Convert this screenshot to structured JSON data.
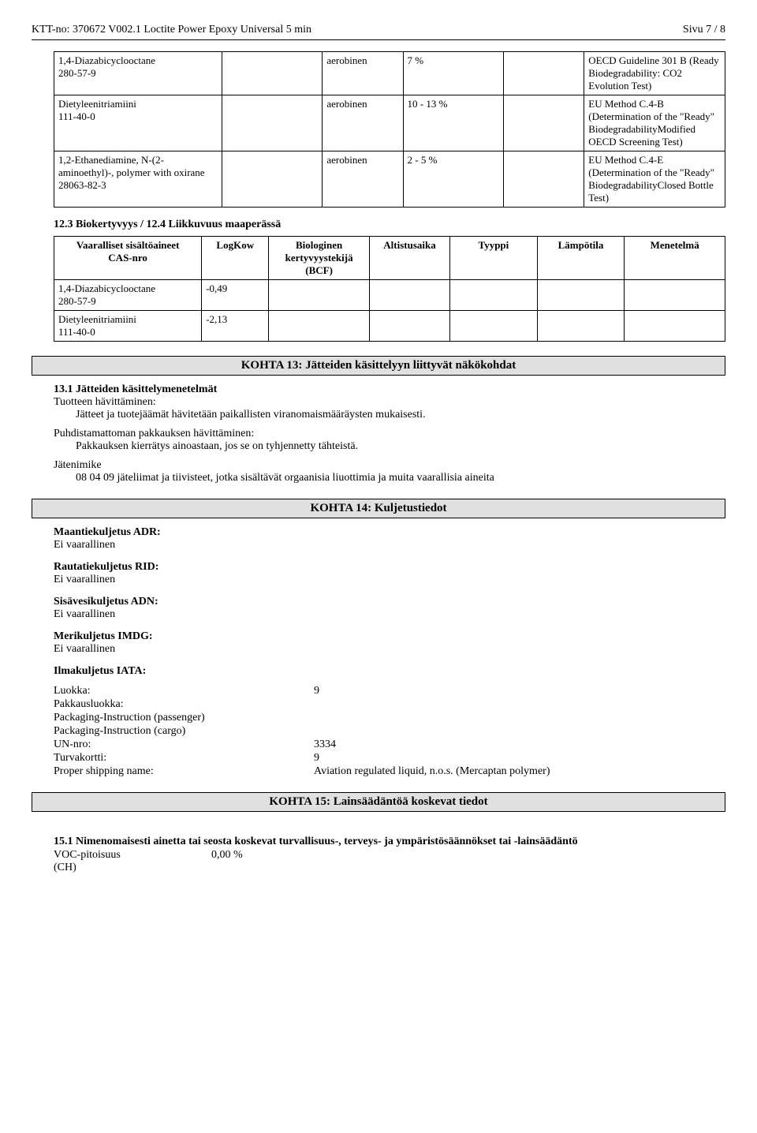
{
  "header": {
    "left": "KTT-no: 370672   V002.1    Loctite Power Epoxy Universal 5 min",
    "right": "Sivu 7 / 8"
  },
  "table1": {
    "rows": [
      {
        "substance": "1,4-Diazabicyclooctane\n280-57-9",
        "c2": "aerobinen",
        "c3": "7 %",
        "c4": "OECD Guideline 301 B (Ready Biodegradability: CO2 Evolution Test)"
      },
      {
        "substance": "Dietyleenitriamiini\n111-40-0",
        "c2": "aerobinen",
        "c3": "10 - 13 %",
        "c4": "EU Method C.4-B (Determination of the \"Ready\" BiodegradabilityModified OECD Screening Test)"
      },
      {
        "substance": "1,2-Ethanediamine, N-(2-aminoethyl)-, polymer with oxirane\n28063-82-3",
        "c2": "aerobinen",
        "c3": "2 - 5 %",
        "c4": "EU Method C.4-E (Determination of the \"Ready\" BiodegradabilityClosed Bottle Test)"
      }
    ]
  },
  "sec12_3_title": "12.3 Biokertyvyys / 12.4 Liikkuvuus maaperässä",
  "table2": {
    "headers": [
      "Vaaralliset sisältöaineet\nCAS-nro",
      "LogKow",
      "Biologinen kertyvyystekijä (BCF)",
      "Altistusaika",
      "Tyyppi",
      "Lämpötila",
      "Menetelmä"
    ],
    "rows": [
      {
        "c1": "1,4-Diazabicyclooctane\n280-57-9",
        "c2": "-0,49",
        "c3": "",
        "c4": "",
        "c5": "",
        "c6": "",
        "c7": ""
      },
      {
        "c1": "Dietyleenitriamiini\n111-40-0",
        "c2": "-2,13",
        "c3": "",
        "c4": "",
        "c5": "",
        "c6": "",
        "c7": ""
      }
    ]
  },
  "kohta13": {
    "bar": "KOHTA 13: Jätteiden käsittelyyn liittyvät näkökohdat",
    "s1_title": "13.1 Jätteiden käsittelymenetelmät",
    "disposal_label": "Tuotteen hävittäminen:",
    "disposal_text": "Jätteet ja tuotejäämät hävitetään paikallisten viranomaismääräysten mukaisesti.",
    "pkg_label": "Puhdistamattoman pakkauksen hävittäminen:",
    "pkg_text": "Pakkauksen kierrätys ainoastaan, jos se on tyhjennetty tähteistä.",
    "waste_label": "Jätenimike",
    "waste_text": "08 04 09 jäteliimat ja tiivisteet, jotka sisältävät orgaanisia liuottimia ja muita vaarallisia aineita"
  },
  "kohta14": {
    "bar": "KOHTA 14: Kuljetustiedot",
    "blocks": [
      {
        "title": "Maantiekuljetus ADR:",
        "value": "Ei vaarallinen"
      },
      {
        "title": "Rautatiekuljetus RID:",
        "value": "Ei vaarallinen"
      },
      {
        "title": "Sisävesikuljetus ADN:",
        "value": "Ei vaarallinen"
      },
      {
        "title": "Merikuljetus IMDG:",
        "value": "Ei vaarallinen"
      }
    ],
    "iata_title": "Ilmakuljetus IATA:",
    "iata_rows": [
      {
        "label": "Luokka:",
        "value": "9"
      },
      {
        "label": "Pakkausluokka:",
        "value": ""
      },
      {
        "label": "Packaging-Instruction (passenger)",
        "value": ""
      },
      {
        "label": "Packaging-Instruction (cargo)",
        "value": ""
      },
      {
        "label": "UN-nro:",
        "value": "3334"
      },
      {
        "label": "Turvakortti:",
        "value": "9"
      },
      {
        "label": "Proper shipping name:",
        "value": "Aviation regulated liquid, n.o.s. (Mercaptan polymer)"
      }
    ]
  },
  "kohta15": {
    "bar": "KOHTA 15: Lainsäädäntöä koskevat tiedot",
    "s1_title": "15.1 Nimenomaisesti ainetta tai seosta koskevat turvallisuus-, terveys- ja ympäristösäännökset tai -lainsäädäntö",
    "voc_label": "VOC-pitoisuus\n(CH)",
    "voc_value": "0,00 %"
  }
}
